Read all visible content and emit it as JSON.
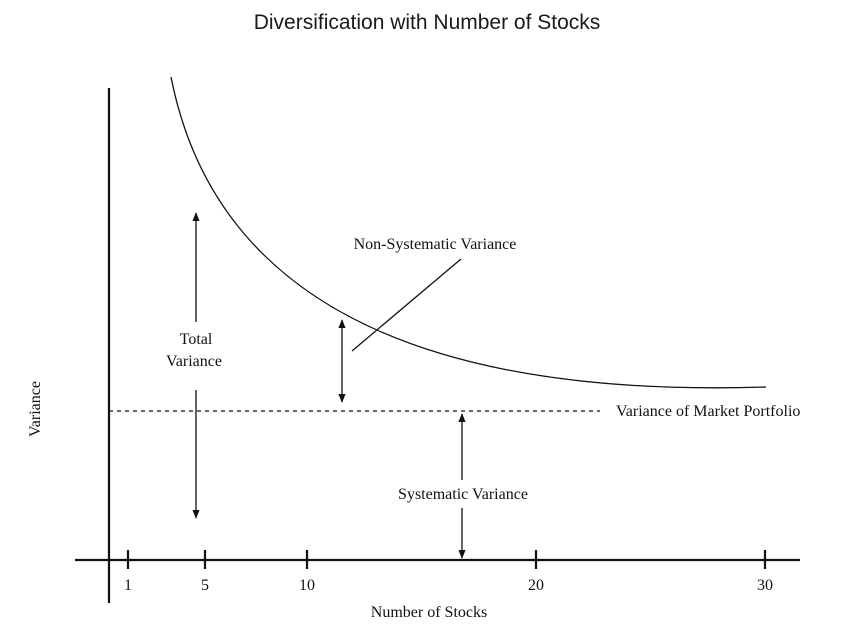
{
  "title": "Diversification with Number of Stocks",
  "axes": {
    "y_label": "Variance",
    "x_label": "Number of Stocks",
    "x_ticks": [
      "1",
      "5",
      "10",
      "20",
      "30"
    ]
  },
  "labels": {
    "total_line1": "Total",
    "total_line2": "Variance",
    "non_systematic": "Non-Systematic Variance",
    "market_portfolio": "Variance of Market Portfolio",
    "systematic": "Systematic Variance"
  }
}
